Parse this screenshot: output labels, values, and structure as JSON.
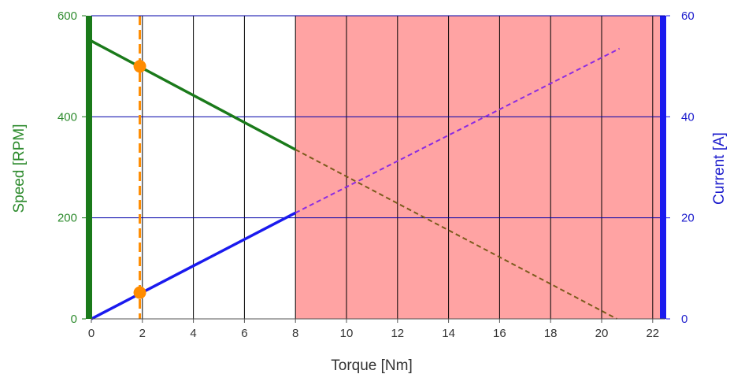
{
  "chart_data": {
    "type": "line",
    "title": "",
    "xlabel": "Torque [Nm]",
    "ylabel_left": "Speed [RPM]",
    "ylabel_right": "Current [A]",
    "xlim": [
      0,
      22.5
    ],
    "ylim_left": [
      0,
      600
    ],
    "ylim_right": [
      0,
      60
    ],
    "xticks": [
      0,
      2,
      4,
      6,
      8,
      10,
      12,
      14,
      16,
      18,
      20,
      22
    ],
    "yticks_left": [
      0,
      200,
      400,
      600
    ],
    "yticks_right": [
      0,
      20,
      40,
      60
    ],
    "grid": true,
    "colors": {
      "speed": "#1a7a1a",
      "speed_dashed": "#7a5a1a",
      "current": "#1a1aee",
      "current_dashed": "#8a2be2",
      "operating_point": "#ff8c00",
      "overload_region": "#ffa3a3",
      "left_axis_text": "#2e8b2e",
      "right_axis_text": "#1a1acc",
      "x_axis_text": "#333333",
      "grid_vertical": "#000000",
      "grid_horizontal": "#0000aa"
    },
    "overload_region": {
      "x_start": 8,
      "x_end": 22.5
    },
    "series": [
      {
        "name": "Speed",
        "axis": "left",
        "style": "solid",
        "x": [
          0,
          8
        ],
        "y": [
          550,
          335
        ]
      },
      {
        "name": "Speed",
        "axis": "left",
        "style": "dashed",
        "x": [
          8,
          20.6
        ],
        "y": [
          335,
          0
        ]
      },
      {
        "name": "Current",
        "axis": "right",
        "style": "solid",
        "x": [
          0,
          8
        ],
        "y": [
          0,
          21
        ]
      },
      {
        "name": "Current",
        "axis": "right",
        "style": "dashed",
        "x": [
          8,
          20.7
        ],
        "y": [
          21,
          53.5
        ]
      }
    ],
    "operating_point": {
      "x": 1.9,
      "speed": 500,
      "current": 5.2
    }
  }
}
